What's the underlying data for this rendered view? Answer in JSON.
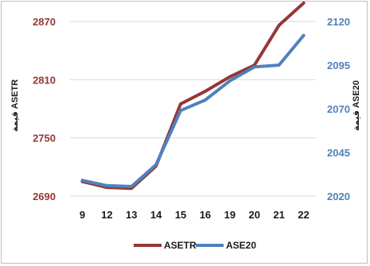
{
  "chart_data": {
    "type": "line",
    "categories": [
      "9",
      "12",
      "13",
      "14",
      "15",
      "16",
      "19",
      "20",
      "21",
      "22"
    ],
    "series": [
      {
        "name": "ASETR",
        "axis": "left",
        "color": "#953735",
        "values": [
          2705,
          2699,
          2698,
          2721,
          2785,
          2798,
          2813,
          2825,
          2866,
          2889
        ]
      },
      {
        "name": "ASE20",
        "axis": "right",
        "color": "#4f81bd",
        "values": [
          2029,
          2026,
          2025.5,
          2038,
          2069,
          2075,
          2086,
          2094,
          2095,
          2112
        ]
      }
    ],
    "left_axis": {
      "label": "قيمة ASETR",
      "ylim": [
        2690,
        2870
      ],
      "ticks": [
        "2690",
        "2750",
        "2810",
        "2870"
      ],
      "tick_color": "#953735"
    },
    "right_axis": {
      "label": "قيمة ASE20",
      "ylim": [
        2020,
        2120
      ],
      "ticks": [
        "2020",
        "2045",
        "2070",
        "2095",
        "2120"
      ],
      "tick_color": "#4f81bd"
    },
    "grid": true,
    "legend_position": "bottom",
    "legend": [
      "ASETR",
      "ASE20"
    ]
  }
}
